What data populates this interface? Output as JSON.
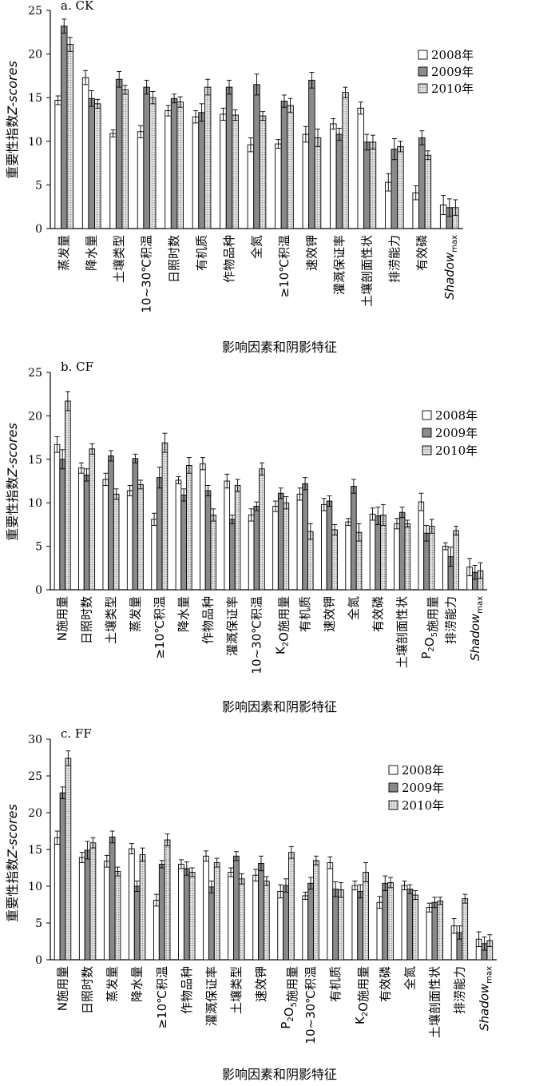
{
  "chart_data": [
    {
      "type": "bar",
      "panel_label": "a. CK",
      "ylabel": "重要性指数Z-scores",
      "xlabel": "影响因素和阴影特征",
      "ylim": [
        0,
        25
      ],
      "yticks": [
        0,
        5,
        10,
        15,
        20,
        25
      ],
      "legend": "right",
      "categories": [
        "蒸发量",
        "降水量",
        "土壤类型",
        "10~30℃积温",
        "日照时数",
        "有机质",
        "作物品种",
        "全氮",
        "≥10℃积温",
        "速效钾",
        "灌溉保证率",
        "土壤剖面性状",
        "排涝能力",
        "有效磷",
        "Shadow max"
      ],
      "series": [
        {
          "name": "2008年",
          "values": [
            14.7,
            17.3,
            10.9,
            11.1,
            13.5,
            12.8,
            13.1,
            9.6,
            9.7,
            10.8,
            12.0,
            13.8,
            5.3,
            4.1,
            2.7
          ],
          "errors": [
            0.5,
            0.8,
            0.4,
            0.7,
            0.6,
            0.7,
            0.7,
            0.8,
            0.5,
            0.9,
            0.6,
            0.7,
            1.0,
            0.8,
            1.1
          ]
        },
        {
          "name": "2009年",
          "values": [
            23.2,
            14.9,
            17.1,
            16.2,
            14.9,
            13.3,
            16.2,
            16.5,
            14.6,
            17.0,
            10.8,
            9.9,
            9.1,
            10.4,
            2.4
          ],
          "errors": [
            0.8,
            0.9,
            0.9,
            0.8,
            0.5,
            1.0,
            0.8,
            1.2,
            0.7,
            0.9,
            0.7,
            0.9,
            1.2,
            0.8,
            1.0
          ]
        },
        {
          "name": "2010年",
          "values": [
            21.1,
            14.3,
            15.9,
            15.0,
            14.5,
            16.2,
            13.0,
            12.9,
            14.1,
            10.4,
            15.6,
            9.9,
            9.4,
            8.4,
            2.4
          ],
          "errors": [
            0.8,
            0.5,
            0.5,
            0.7,
            0.6,
            0.9,
            0.6,
            0.5,
            0.8,
            1.0,
            0.6,
            0.8,
            0.6,
            0.5,
            0.9
          ]
        }
      ]
    },
    {
      "type": "bar",
      "panel_label": "b. CF",
      "ylabel": "重要性指数Z-scores",
      "xlabel": "影响因素和阴影特征",
      "ylim": [
        0,
        25
      ],
      "yticks": [
        0,
        5,
        10,
        15,
        20,
        25
      ],
      "legend": "right",
      "categories": [
        "N施用量",
        "日照时数",
        "土壤类型",
        "蒸发量",
        "≥10℃积温",
        "降水量",
        "作物品种",
        "灌溉保证率",
        "10~30℃积温",
        "K₂O施用量",
        "有机质",
        "速效钾",
        "全氮",
        "有效磷",
        "土壤剖面性状",
        "P₂O₅施用量",
        "排涝能力",
        "Shadow max"
      ],
      "series": [
        {
          "name": "2008年",
          "values": [
            16.7,
            14.0,
            12.7,
            11.4,
            8.1,
            12.6,
            14.5,
            12.5,
            8.6,
            9.6,
            11.0,
            9.8,
            7.8,
            8.7,
            7.6,
            10.1,
            5.0,
            2.6
          ],
          "errors": [
            0.9,
            0.6,
            0.7,
            0.6,
            0.7,
            0.4,
            0.7,
            0.8,
            0.7,
            0.6,
            0.7,
            0.7,
            0.4,
            0.7,
            0.6,
            1.0,
            0.4,
            1.0
          ]
        },
        {
          "name": "2009年",
          "values": [
            15.0,
            13.2,
            15.4,
            15.1,
            12.9,
            10.9,
            11.4,
            8.1,
            9.6,
            11.1,
            12.2,
            10.2,
            11.9,
            8.5,
            8.9,
            6.5,
            3.8,
            2.0
          ],
          "errors": [
            1.1,
            0.7,
            0.6,
            0.5,
            1.2,
            0.7,
            0.6,
            0.5,
            0.5,
            0.6,
            0.7,
            0.6,
            0.8,
            1.0,
            0.6,
            0.9,
            1.1,
            0.8
          ]
        },
        {
          "name": "2010年",
          "values": [
            21.7,
            16.2,
            11.0,
            12.1,
            16.9,
            14.3,
            8.6,
            12.0,
            13.9,
            10.0,
            6.7,
            6.9,
            6.6,
            8.6,
            7.6,
            7.3,
            6.8,
            2.2
          ],
          "errors": [
            1.1,
            0.6,
            0.6,
            0.5,
            1.1,
            0.9,
            0.7,
            0.7,
            0.7,
            0.7,
            0.9,
            0.6,
            1.0,
            1.2,
            0.4,
            0.8,
            0.5,
            0.9
          ]
        }
      ]
    },
    {
      "type": "bar",
      "panel_label": "c. FF",
      "ylabel": "重要性指数Z-scores",
      "xlabel": "影响因素和阴影特征",
      "ylim": [
        0,
        30
      ],
      "yticks": [
        0,
        5,
        10,
        15,
        20,
        25,
        30
      ],
      "legend": "top-right",
      "categories": [
        "N施用量",
        "日照时数",
        "蒸发量",
        "降水量",
        "≥10℃积温",
        "作物品种",
        "灌溉保证率",
        "土壤类型",
        "速效钾",
        "P₂O₅施用量",
        "10~30℃积温",
        "有机质",
        "K₂O施用量",
        "有效磷",
        "全氮",
        "土壤剖面性状",
        "排涝能力",
        "Shadow max"
      ],
      "series": [
        {
          "name": "2008年",
          "values": [
            16.6,
            13.9,
            13.4,
            15.1,
            8.1,
            13.0,
            14.1,
            11.9,
            11.5,
            9.3,
            8.7,
            13.2,
            10.1,
            7.8,
            10.1,
            7.1,
            4.6,
            2.8
          ],
          "errors": [
            0.9,
            0.7,
            0.8,
            0.7,
            0.8,
            0.6,
            0.7,
            0.6,
            0.8,
            0.9,
            0.5,
            0.8,
            0.6,
            0.8,
            0.6,
            0.6,
            1.0,
            1.0
          ]
        },
        {
          "name": "2009年",
          "values": [
            22.7,
            14.9,
            16.7,
            10.0,
            13.0,
            12.4,
            9.9,
            14.1,
            13.1,
            10.1,
            10.4,
            9.6,
            9.3,
            10.4,
            9.6,
            7.8,
            3.7,
            2.2
          ],
          "errors": [
            0.8,
            1.2,
            0.8,
            0.7,
            0.5,
            0.9,
            0.8,
            0.6,
            1.0,
            0.9,
            0.8,
            1.0,
            0.9,
            1.0,
            0.6,
            0.7,
            0.9,
            0.9
          ]
        },
        {
          "name": "2010年",
          "values": [
            27.4,
            15.9,
            12.0,
            14.3,
            16.3,
            11.9,
            13.2,
            11.0,
            10.7,
            14.6,
            13.5,
            9.5,
            11.9,
            10.5,
            8.8,
            8.0,
            8.3,
            2.6
          ],
          "errors": [
            1.0,
            0.7,
            0.6,
            0.9,
            0.8,
            0.6,
            0.6,
            0.7,
            0.6,
            0.8,
            0.6,
            1.0,
            1.3,
            0.7,
            0.6,
            0.5,
            0.6,
            0.8
          ]
        }
      ]
    }
  ]
}
